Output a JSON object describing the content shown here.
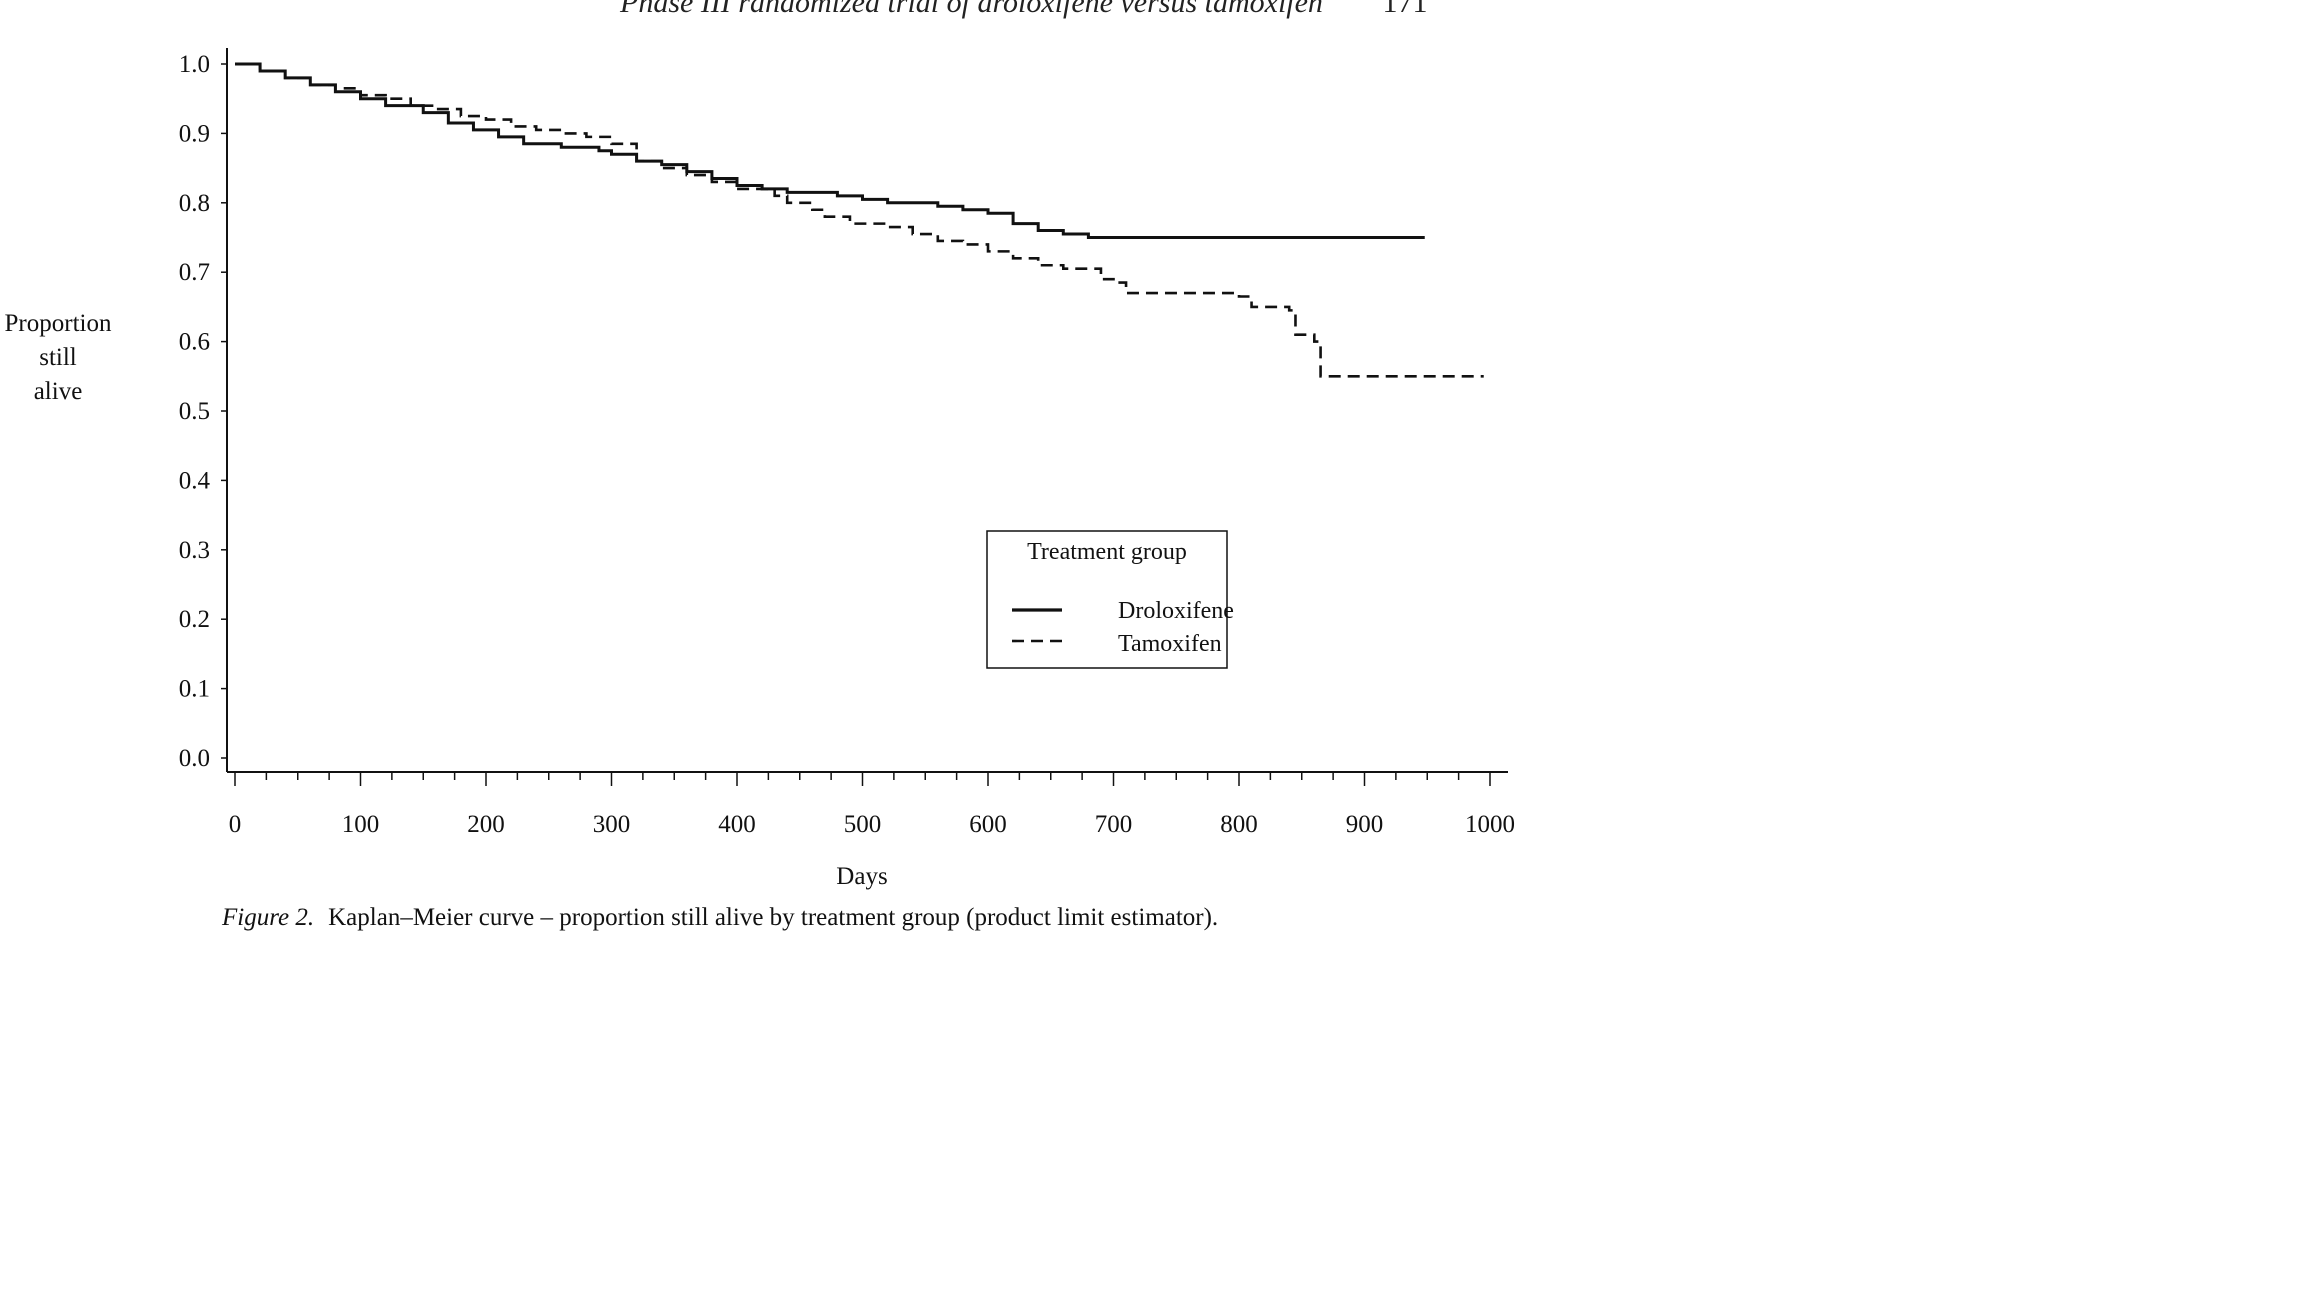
{
  "page_header": {
    "running_title": "Phase III randomized trial of droloxifene versus tamoxifen",
    "page_number": "171"
  },
  "caption": {
    "label": "Figure 2.",
    "text": "Kaplan–Meier curve – proportion still alive by treatment group (product limit estimator)."
  },
  "chart_data": {
    "type": "line",
    "step": true,
    "title": "",
    "xlabel": "Days",
    "ylabel_lines": [
      "Proportion",
      "still",
      "alive"
    ],
    "xlim": [
      0,
      1000
    ],
    "ylim": [
      0,
      1.0
    ],
    "xticks": [
      0,
      100,
      200,
      300,
      400,
      500,
      600,
      700,
      800,
      900,
      1000
    ],
    "yticks": [
      "0.0",
      "0.1",
      "0.2",
      "0.3",
      "0.4",
      "0.5",
      "0.6",
      "0.7",
      "0.8",
      "0.9",
      "1.0"
    ],
    "grid": false,
    "legend": {
      "title": "Treatment group",
      "placement": "center-right",
      "entries": [
        "Droloxifene",
        "Tamoxifen"
      ]
    },
    "series": [
      {
        "name": "Droloxifene",
        "style": "solid",
        "color": "#111111",
        "points": [
          [
            0,
            1.0
          ],
          [
            20,
            0.99
          ],
          [
            40,
            0.98
          ],
          [
            60,
            0.97
          ],
          [
            80,
            0.96
          ],
          [
            100,
            0.95
          ],
          [
            120,
            0.94
          ],
          [
            150,
            0.93
          ],
          [
            170,
            0.915
          ],
          [
            190,
            0.905
          ],
          [
            210,
            0.895
          ],
          [
            230,
            0.885
          ],
          [
            260,
            0.88
          ],
          [
            290,
            0.875
          ],
          [
            300,
            0.87
          ],
          [
            320,
            0.86
          ],
          [
            340,
            0.855
          ],
          [
            360,
            0.845
          ],
          [
            380,
            0.835
          ],
          [
            400,
            0.825
          ],
          [
            420,
            0.82
          ],
          [
            440,
            0.815
          ],
          [
            480,
            0.81
          ],
          [
            500,
            0.805
          ],
          [
            520,
            0.8
          ],
          [
            560,
            0.795
          ],
          [
            580,
            0.79
          ],
          [
            600,
            0.785
          ],
          [
            620,
            0.77
          ],
          [
            640,
            0.76
          ],
          [
            660,
            0.755
          ],
          [
            680,
            0.75
          ],
          [
            700,
            0.75
          ],
          [
            800,
            0.75
          ],
          [
            900,
            0.75
          ],
          [
            948,
            0.75
          ]
        ]
      },
      {
        "name": "Tamoxifen",
        "style": "dashed",
        "color": "#111111",
        "points": [
          [
            0,
            1.0
          ],
          [
            20,
            0.99
          ],
          [
            40,
            0.98
          ],
          [
            60,
            0.97
          ],
          [
            80,
            0.965
          ],
          [
            100,
            0.955
          ],
          [
            120,
            0.95
          ],
          [
            140,
            0.94
          ],
          [
            160,
            0.935
          ],
          [
            180,
            0.925
          ],
          [
            200,
            0.92
          ],
          [
            220,
            0.91
          ],
          [
            240,
            0.905
          ],
          [
            260,
            0.9
          ],
          [
            280,
            0.895
          ],
          [
            300,
            0.885
          ],
          [
            320,
            0.86
          ],
          [
            340,
            0.85
          ],
          [
            360,
            0.84
          ],
          [
            380,
            0.83
          ],
          [
            400,
            0.82
          ],
          [
            430,
            0.81
          ],
          [
            440,
            0.8
          ],
          [
            460,
            0.79
          ],
          [
            470,
            0.78
          ],
          [
            490,
            0.77
          ],
          [
            520,
            0.765
          ],
          [
            540,
            0.755
          ],
          [
            560,
            0.745
          ],
          [
            580,
            0.74
          ],
          [
            600,
            0.73
          ],
          [
            620,
            0.72
          ],
          [
            640,
            0.71
          ],
          [
            660,
            0.705
          ],
          [
            690,
            0.69
          ],
          [
            700,
            0.685
          ],
          [
            710,
            0.67
          ],
          [
            760,
            0.67
          ],
          [
            800,
            0.665
          ],
          [
            810,
            0.65
          ],
          [
            840,
            0.645
          ],
          [
            845,
            0.61
          ],
          [
            860,
            0.6
          ],
          [
            865,
            0.55
          ],
          [
            900,
            0.55
          ],
          [
            995,
            0.55
          ]
        ]
      }
    ]
  }
}
